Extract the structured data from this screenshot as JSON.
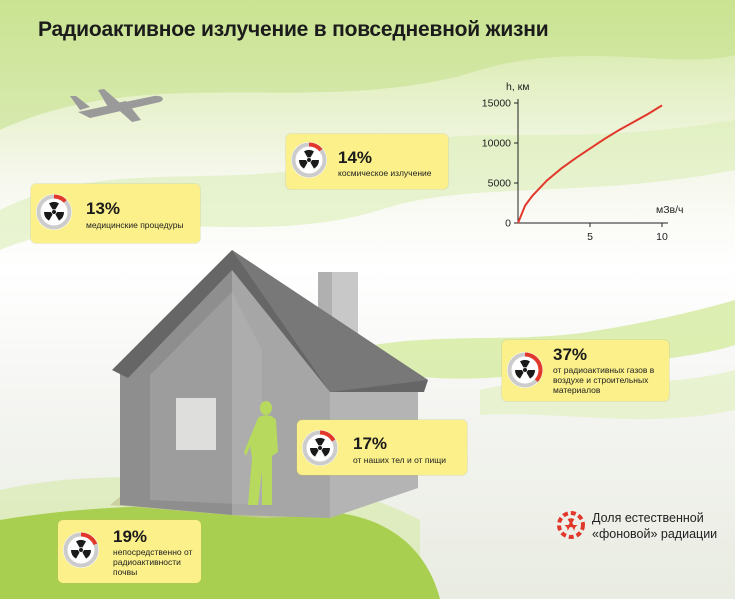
{
  "title": "Радиоактивное излучение в повседневной жизни",
  "cards": {
    "medical": {
      "percent": "13%",
      "label": "медицинские процедуры",
      "fraction": 0.13
    },
    "cosmic": {
      "percent": "14%",
      "label": "космическое излучение",
      "fraction": 0.14
    },
    "gases": {
      "percent": "37%",
      "label": "от радиоактивных газов в воздухе и строительных материалов",
      "fraction": 0.37
    },
    "body": {
      "percent": "17%",
      "label": "от наших тел и от пищи",
      "fraction": 0.17
    },
    "soil": {
      "percent": "19%",
      "label": "непосредственно от радиоактивности почвы",
      "fraction": 0.19
    }
  },
  "chart_data": {
    "type": "line",
    "ylabel": "h, км",
    "xlabel": "мЗв/ч",
    "xlim": [
      0,
      10
    ],
    "ylim": [
      0,
      15000
    ],
    "x_ticks": [
      "5",
      "10"
    ],
    "y_ticks": [
      "0",
      "5000",
      "10000",
      "15000"
    ],
    "series": [
      {
        "x": [
          0,
          0.5,
          1,
          2,
          3,
          4,
          5,
          6,
          7,
          8,
          9,
          10
        ],
        "y": [
          0,
          2200,
          3400,
          5300,
          6800,
          8100,
          9300,
          10500,
          11600,
          12600,
          13600,
          14700
        ]
      }
    ],
    "color": "#e2382c"
  },
  "legend": {
    "line1": "Доля естественной",
    "line2": "«фоновой» радиации"
  },
  "colors": {
    "card": "#fbf08a",
    "accent": "#e2382c",
    "share_track": "#cccccc",
    "green": "#a8cf4f"
  }
}
